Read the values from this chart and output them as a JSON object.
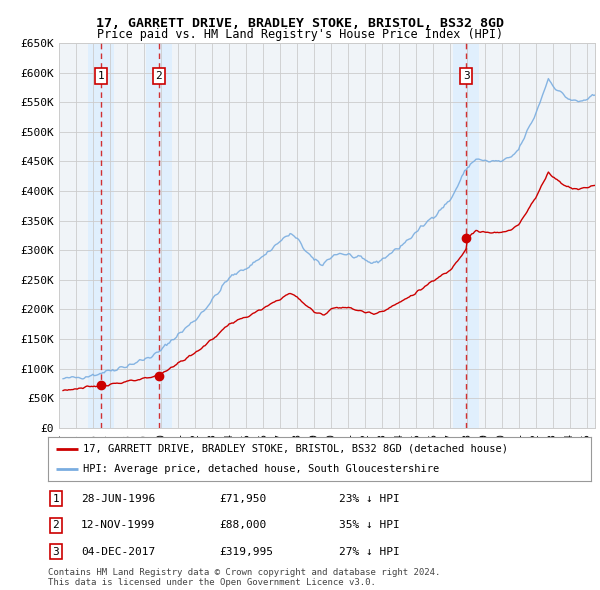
{
  "title": "17, GARRETT DRIVE, BRADLEY STOKE, BRISTOL, BS32 8GD",
  "subtitle": "Price paid vs. HM Land Registry's House Price Index (HPI)",
  "ylim": [
    0,
    650000
  ],
  "yticks": [
    0,
    50000,
    100000,
    150000,
    200000,
    250000,
    300000,
    350000,
    400000,
    450000,
    500000,
    550000,
    600000,
    650000
  ],
  "ytick_labels": [
    "£0",
    "£50K",
    "£100K",
    "£150K",
    "£200K",
    "£250K",
    "£300K",
    "£350K",
    "£400K",
    "£450K",
    "£500K",
    "£550K",
    "£600K",
    "£650K"
  ],
  "xlim_start": 1994.25,
  "xlim_end": 2025.5,
  "sale_dates": [
    1996.49,
    1999.87,
    2017.92
  ],
  "sale_prices": [
    71950,
    88000,
    319995
  ],
  "sale_labels": [
    "1",
    "2",
    "3"
  ],
  "property_line_color": "#cc0000",
  "hpi_line_color": "#7aade0",
  "vline_color": "#cc0000",
  "shade_color": "#ddeeff",
  "grid_color": "#cccccc",
  "legend_label_property": "17, GARRETT DRIVE, BRADLEY STOKE, BRISTOL, BS32 8GD (detached house)",
  "legend_label_hpi": "HPI: Average price, detached house, South Gloucestershire",
  "table_rows": [
    [
      "1",
      "28-JUN-1996",
      "£71,950",
      "23% ↓ HPI"
    ],
    [
      "2",
      "12-NOV-1999",
      "£88,000",
      "35% ↓ HPI"
    ],
    [
      "3",
      "04-DEC-2017",
      "£319,995",
      "27% ↓ HPI"
    ]
  ],
  "footer": "Contains HM Land Registry data © Crown copyright and database right 2024.\nThis data is licensed under the Open Government Licence v3.0.",
  "background_color": "#ffffff",
  "plot_bg_color": "#f0f4f8"
}
